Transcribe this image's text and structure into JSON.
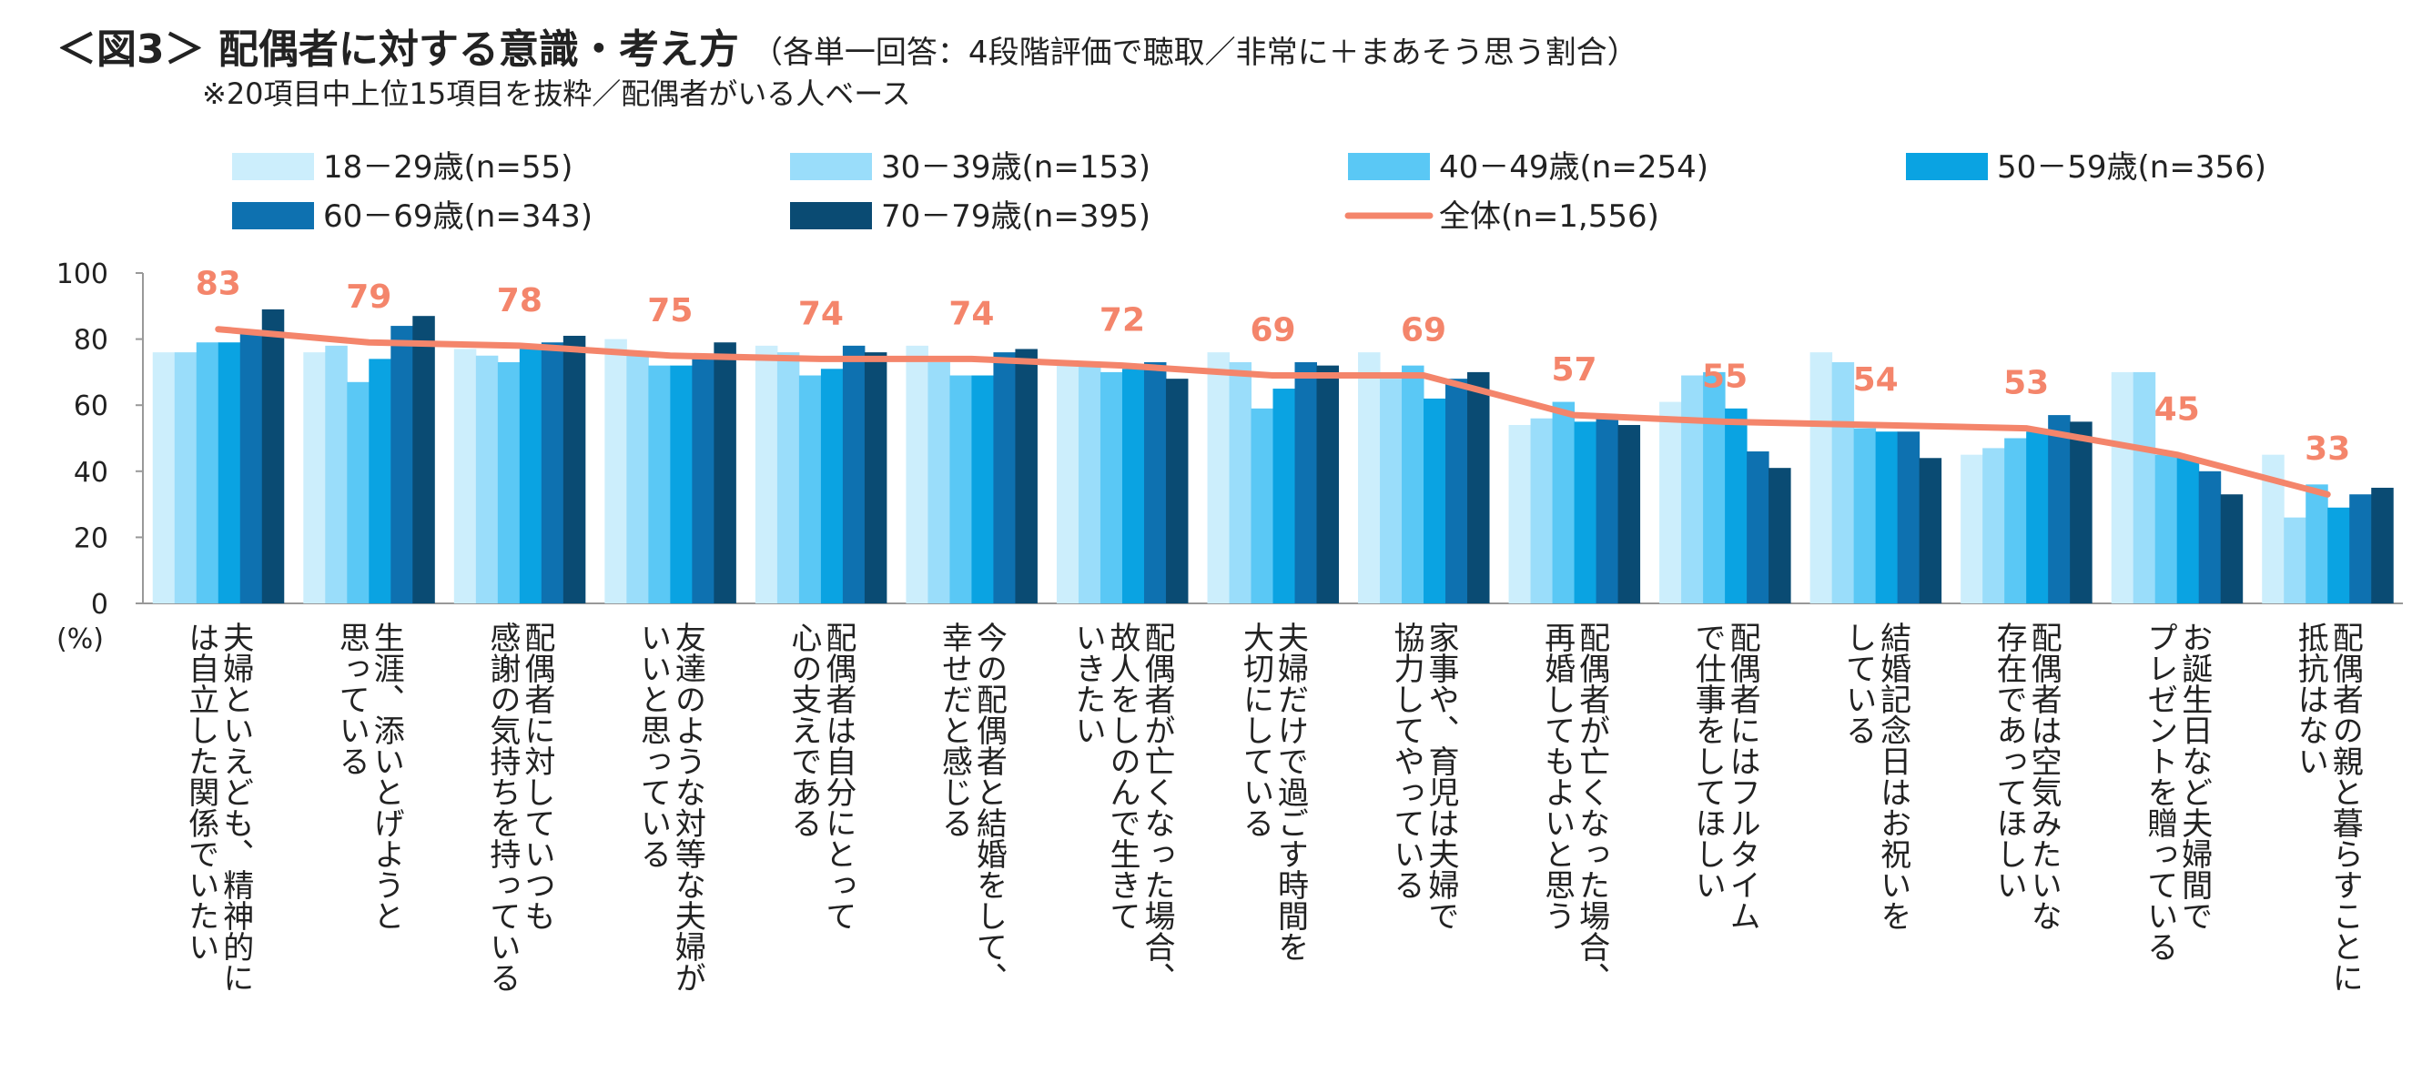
{
  "title": "＜図3＞ 配偶者に対する意識・考え方",
  "title_note": "（各単一回答：4段階評価で聴取／非常に＋まあそう思う割合）",
  "subtitle": "※20項目中上位15項目を抜粋／配偶者がいる人ベース",
  "chart_data": {
    "type": "bar",
    "ylabel": "(%)",
    "ylim": [
      0,
      100
    ],
    "yticks": [
      "0",
      "20",
      "40",
      "60",
      "80",
      "100"
    ],
    "categories": [
      [
        "夫婦といえども、精神的に",
        "は自立した関係でいたい"
      ],
      [
        "生涯、添いとげようと",
        "思っている"
      ],
      [
        "配偶者に対していつも",
        "感謝の気持ちを持っている"
      ],
      [
        "友達のような対等な夫婦が",
        "いいと思っている"
      ],
      [
        "配偶者は自分にとって",
        "心の支えである"
      ],
      [
        "今の配偶者と結婚をして、",
        "幸せだと感じる"
      ],
      [
        "配偶者が亡くなった場合、",
        "故人をしのんで生きて",
        "いきたい"
      ],
      [
        "夫婦だけで過ごす時間を",
        "大切にしている"
      ],
      [
        "家事や、育児は夫婦で",
        "協力してやっている"
      ],
      [
        "配偶者が亡くなった場合、",
        "再婚してもよいと思う"
      ],
      [
        "配偶者にはフルタイム",
        "で仕事をしてほしい"
      ],
      [
        "結婚記念日はお祝いを",
        "している"
      ],
      [
        "配偶者は空気みたいな",
        "存在であってほしい"
      ],
      [
        "お誕生日など夫婦間で",
        "プレゼントを贈っている"
      ],
      [
        "配偶者の親と暮らすことに",
        "抵抗はない"
      ]
    ],
    "series": [
      {
        "name": "18－29歳(n=55)",
        "color": "#CCEEFC",
        "values": [
          76,
          76,
          77,
          80,
          78,
          78,
          73,
          76,
          76,
          54,
          61,
          76,
          45,
          70,
          45
        ]
      },
      {
        "name": "30－39歳(n=153)",
        "color": "#9ADDFA",
        "values": [
          76,
          78,
          75,
          75,
          76,
          73,
          72,
          73,
          68,
          56,
          69,
          73,
          47,
          70,
          26
        ]
      },
      {
        "name": "40－49歳(n=254)",
        "color": "#5AC8F5",
        "values": [
          79,
          67,
          73,
          72,
          69,
          69,
          70,
          59,
          72,
          61,
          70,
          53,
          50,
          45,
          36
        ]
      },
      {
        "name": "50－59歳(n=356)",
        "color": "#0AA3E2",
        "values": [
          79,
          74,
          77,
          72,
          71,
          69,
          71,
          65,
          62,
          55,
          59,
          52,
          52,
          44,
          29
        ]
      },
      {
        "name": "60－69歳(n=343)",
        "color": "#0E71B0",
        "values": [
          82,
          84,
          79,
          75,
          78,
          76,
          73,
          73,
          68,
          57,
          46,
          52,
          57,
          40,
          33
        ]
      },
      {
        "name": "70－79歳(n=395)",
        "color": "#0A4B73",
        "values": [
          89,
          87,
          81,
          79,
          76,
          77,
          68,
          72,
          70,
          54,
          41,
          44,
          55,
          33,
          35
        ]
      }
    ],
    "line": {
      "name": "全体(n=1,556)",
      "color": "#F4856B",
      "values": [
        83,
        79,
        78,
        75,
        74,
        74,
        72,
        69,
        69,
        57,
        55,
        54,
        53,
        45,
        33
      ]
    }
  }
}
